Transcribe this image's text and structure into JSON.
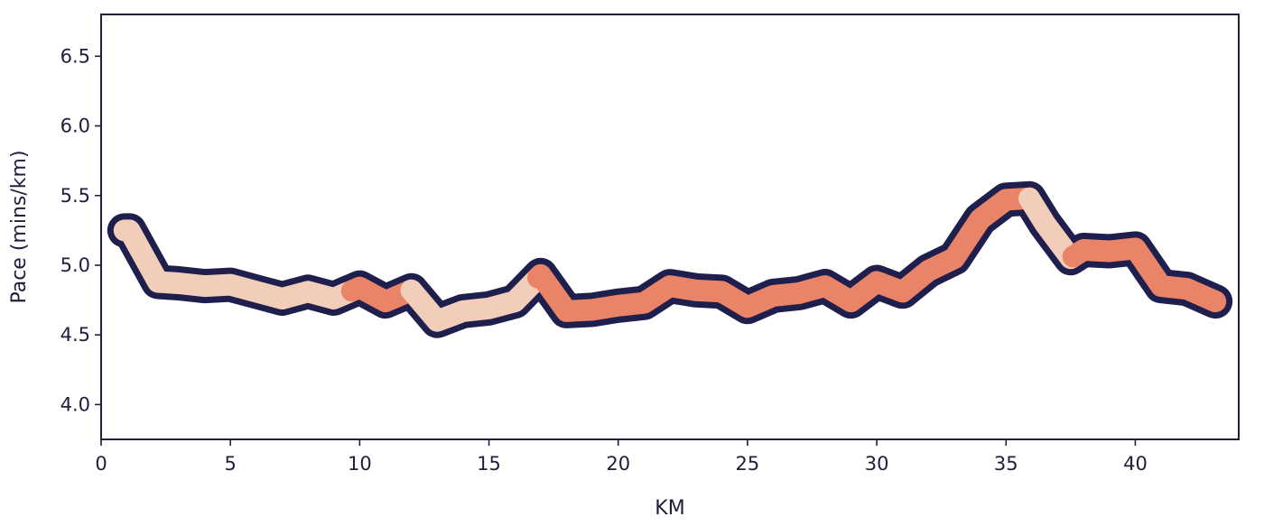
{
  "chart_data": {
    "type": "line",
    "title": "",
    "xlabel": "KM",
    "ylabel": "Pace (mins/km)",
    "xlim": [
      0,
      44
    ],
    "ylim": [
      3.75,
      6.8
    ],
    "x_ticks": [
      0,
      5,
      10,
      15,
      20,
      25,
      30,
      35,
      40
    ],
    "y_ticks": [
      4.0,
      4.5,
      5.0,
      5.5,
      6.0,
      6.5
    ],
    "grid": false,
    "legend": "none",
    "colors": {
      "outline": "#1f1f4d",
      "light": "#f2cdb9",
      "dark": "#ea8468",
      "axis": "#1f1f3d"
    },
    "series": [
      {
        "points": [
          [
            0.9,
            5.25
          ],
          [
            1.1,
            5.25
          ],
          [
            2.2,
            4.88
          ],
          [
            3.0,
            4.87
          ],
          [
            4.0,
            4.85
          ],
          [
            5.0,
            4.86
          ],
          [
            6.0,
            4.81
          ],
          [
            7.0,
            4.76
          ],
          [
            8.0,
            4.81
          ],
          [
            9.0,
            4.76
          ],
          [
            10.0,
            4.84
          ],
          [
            11.0,
            4.74
          ],
          [
            12.0,
            4.82
          ],
          [
            13.0,
            4.6
          ],
          [
            14.0,
            4.67
          ],
          [
            15.0,
            4.69
          ],
          [
            16.0,
            4.74
          ],
          [
            17.0,
            4.93
          ],
          [
            18.0,
            4.67
          ],
          [
            19.0,
            4.68
          ],
          [
            20.0,
            4.71
          ],
          [
            21.0,
            4.73
          ],
          [
            22.0,
            4.85
          ],
          [
            23.0,
            4.82
          ],
          [
            24.0,
            4.81
          ],
          [
            25.0,
            4.7
          ],
          [
            26.0,
            4.78
          ],
          [
            27.0,
            4.8
          ],
          [
            28.0,
            4.85
          ],
          [
            29.0,
            4.74
          ],
          [
            30.0,
            4.88
          ],
          [
            31.0,
            4.81
          ],
          [
            32.0,
            4.96
          ],
          [
            33.0,
            5.05
          ],
          [
            34.0,
            5.33
          ],
          [
            35.0,
            5.47
          ],
          [
            35.9,
            5.48
          ],
          [
            36.5,
            5.3
          ],
          [
            37.5,
            5.05
          ],
          [
            38.0,
            5.11
          ],
          [
            39.0,
            5.1
          ],
          [
            40.0,
            5.12
          ],
          [
            41.0,
            4.85
          ],
          [
            42.0,
            4.83
          ],
          [
            43.1,
            4.74
          ]
        ],
        "segments": [
          {
            "from": 0.9,
            "to": 9.7,
            "color": "light"
          },
          {
            "from": 9.7,
            "to": 12.0,
            "color": "dark"
          },
          {
            "from": 12.0,
            "to": 16.9,
            "color": "light"
          },
          {
            "from": 16.9,
            "to": 35.9,
            "color": "dark"
          },
          {
            "from": 35.9,
            "to": 37.6,
            "color": "light"
          },
          {
            "from": 37.6,
            "to": 43.1,
            "color": "dark"
          }
        ]
      }
    ]
  }
}
